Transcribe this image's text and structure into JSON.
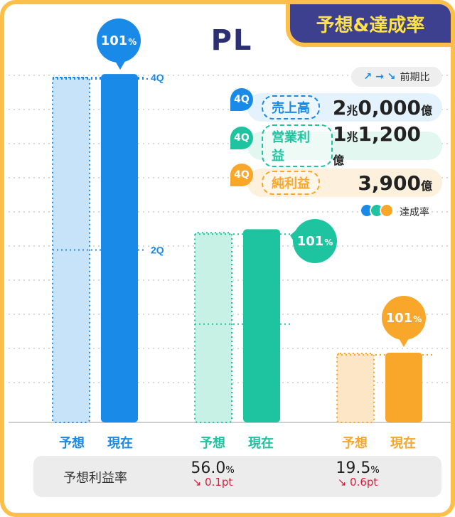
{
  "title": "PL",
  "tag": "予想&達成率",
  "comparison_legend": {
    "arrows": "↗ → ↘",
    "label": "前期比"
  },
  "achievement_legend": {
    "label": "達成率"
  },
  "metrics": [
    {
      "badge": "4Q",
      "label": "売上高",
      "value_a": "2",
      "unit_a": "兆",
      "value_b": "0,000",
      "unit_b": "億",
      "color": "#1a8ae8",
      "bg": "#e3f2fc"
    },
    {
      "badge": "4Q",
      "label": "営業利益",
      "value_a": "1",
      "unit_a": "兆",
      "value_b": "1,200",
      "unit_b": "億",
      "color": "#1ec49f",
      "bg": "#e3f7f1"
    },
    {
      "badge": "4Q",
      "label": "純利益",
      "value_a": "",
      "unit_a": "",
      "value_b": "3,900",
      "unit_b": "億",
      "color": "#f8a72b",
      "bg": "#fdf1dd"
    }
  ],
  "chart_data": {
    "type": "bar",
    "title": "PL",
    "categories": [
      "売上高",
      "営業利益",
      "純利益"
    ],
    "series": [
      {
        "name": "予想",
        "values": [
          100,
          55,
          20
        ]
      },
      {
        "name": "現在",
        "values": [
          101,
          56,
          20.2
        ]
      }
    ],
    "achievement_labels": [
      "101%",
      "101%",
      "101%"
    ],
    "quarter_markers": [
      {
        "label": "4Q",
        "value": 100
      },
      {
        "label": "2Q",
        "value": 50
      }
    ],
    "colors": {
      "sales": "#1a8ae8",
      "sales_light": "#c7e3fa",
      "op": "#1ec49f",
      "op_light": "#c6f1e4",
      "net": "#f8a72b",
      "net_light": "#fde6c6"
    }
  },
  "x_labels": [
    {
      "forecast": "予想",
      "current": "現在"
    },
    {
      "forecast": "予想",
      "current": "現在"
    },
    {
      "forecast": "予想",
      "current": "現在"
    }
  ],
  "margin_row": {
    "label": "予想利益率",
    "items": [
      {
        "value": "56.0",
        "unit": "%",
        "delta": "↘ 0.1pt"
      },
      {
        "value": "19.5",
        "unit": "%",
        "delta": "↘ 0.6pt"
      }
    ]
  }
}
